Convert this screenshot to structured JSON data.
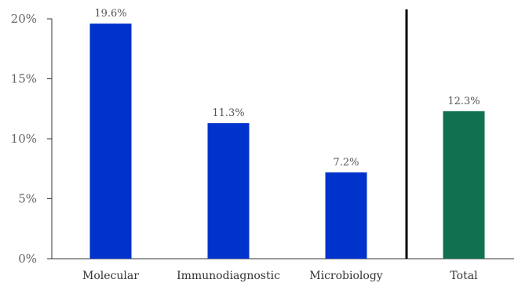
{
  "chart_data": {
    "type": "bar",
    "categories": [
      "Molecular",
      "Immunodiagnostic",
      "Microbiology",
      "Total"
    ],
    "values": [
      19.6,
      11.3,
      7.2,
      12.3
    ],
    "data_labels": [
      "19.6%",
      "11.3%",
      "7.2%",
      "12.3%"
    ],
    "bar_colors": [
      "#0033cc",
      "#0033cc",
      "#0033cc",
      "#107050"
    ],
    "ylim": [
      0,
      20
    ],
    "yticks": [
      0,
      5,
      10,
      15,
      20
    ],
    "ytick_labels": [
      "0%",
      "5%",
      "10%",
      "15%",
      "20%"
    ],
    "title": "",
    "xlabel": "",
    "ylabel": "",
    "separator_before_category": "Total",
    "grid": false,
    "legend": "none"
  }
}
